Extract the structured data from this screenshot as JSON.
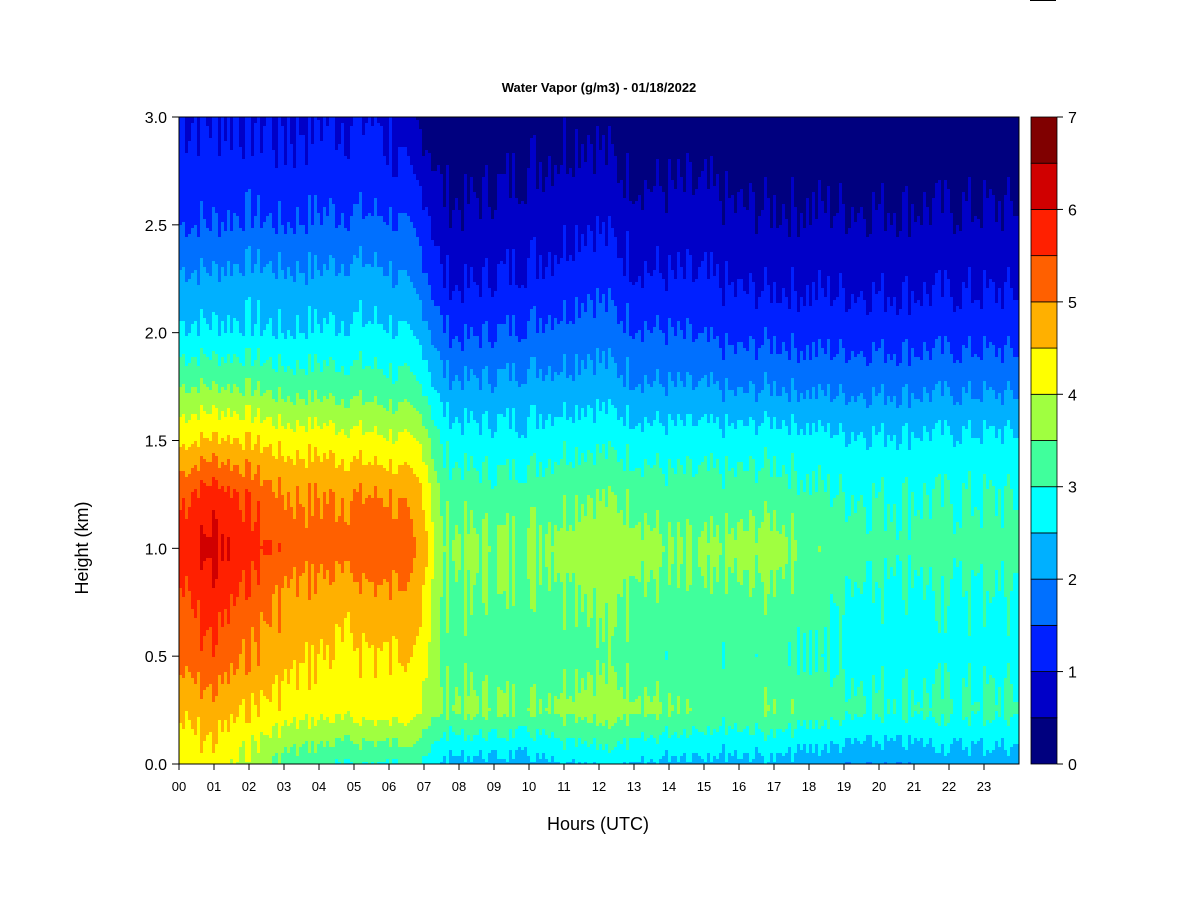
{
  "chart_data": {
    "type": "heatmap",
    "title": "Water Vapor (g/m3) - 01/18/2022",
    "xlabel": "Hours (UTC)",
    "ylabel": "Height (km)",
    "x_ticks": [
      "00",
      "01",
      "02",
      "03",
      "04",
      "05",
      "06",
      "07",
      "08",
      "09",
      "10",
      "11",
      "12",
      "13",
      "14",
      "15",
      "16",
      "17",
      "18",
      "19",
      "20",
      "21",
      "22",
      "23"
    ],
    "y_ticks": [
      "0.0",
      "0.5",
      "1.0",
      "1.5",
      "2.0",
      "2.5",
      "3.0"
    ],
    "xlim": [
      0,
      24
    ],
    "ylim": [
      0,
      3
    ],
    "colorbar": {
      "ticks": [
        "0",
        "1",
        "2",
        "3",
        "4",
        "5",
        "6",
        "7"
      ],
      "range": [
        0,
        7
      ],
      "levels": [
        {
          "from": 0.0,
          "to": 0.5,
          "color": "#00007f"
        },
        {
          "from": 0.5,
          "to": 1.0,
          "color": "#0000c8"
        },
        {
          "from": 1.0,
          "to": 1.5,
          "color": "#0020ff"
        },
        {
          "from": 1.5,
          "to": 2.0,
          "color": "#0070ff"
        },
        {
          "from": 2.0,
          "to": 2.5,
          "color": "#00b0ff"
        },
        {
          "from": 2.5,
          "to": 3.0,
          "color": "#00ffff"
        },
        {
          "from": 3.0,
          "to": 3.5,
          "color": "#40ff9c"
        },
        {
          "from": 3.5,
          "to": 4.0,
          "color": "#a0ff40"
        },
        {
          "from": 4.0,
          "to": 4.5,
          "color": "#ffff00"
        },
        {
          "from": 4.5,
          "to": 5.0,
          "color": "#ffb000"
        },
        {
          "from": 5.0,
          "to": 5.5,
          "color": "#ff6000"
        },
        {
          "from": 5.5,
          "to": 6.0,
          "color": "#ff2000"
        },
        {
          "from": 6.0,
          "to": 6.5,
          "color": "#d00000"
        },
        {
          "from": 6.5,
          "to": 7.0,
          "color": "#800000"
        }
      ]
    },
    "profiles": {
      "heights_km": [
        0.0,
        0.25,
        0.5,
        0.75,
        1.0,
        1.25,
        1.5,
        1.75,
        2.0,
        2.25,
        2.5,
        2.75,
        3.0
      ],
      "times_h": [
        0,
        1,
        2,
        3,
        4,
        5,
        6,
        7,
        7.5,
        8,
        9,
        10,
        11,
        11.7,
        13,
        14,
        15,
        16,
        17,
        18,
        19,
        20,
        21,
        22,
        23,
        24
      ],
      "values": [
        [
          4.2,
          4.6,
          5.2,
          5.4,
          5.7,
          5.4,
          4.4,
          3.5,
          2.6,
          2.1,
          1.5,
          1.2,
          1.0
        ],
        [
          4.3,
          4.8,
          5.4,
          5.8,
          6.2,
          5.8,
          4.6,
          3.5,
          2.6,
          2.1,
          1.5,
          1.2,
          1.0
        ],
        [
          3.8,
          4.5,
          5.0,
          5.3,
          5.8,
          5.4,
          4.5,
          3.5,
          2.6,
          2.2,
          1.6,
          1.2,
          1.0
        ],
        [
          3.3,
          4.3,
          4.7,
          4.9,
          5.3,
          5.0,
          4.3,
          3.3,
          2.5,
          2.1,
          1.5,
          1.1,
          1.0
        ],
        [
          3.1,
          4.2,
          4.5,
          4.8,
          5.2,
          5.0,
          4.3,
          3.3,
          2.6,
          2.1,
          1.6,
          1.2,
          1.0
        ],
        [
          3.0,
          4.2,
          4.4,
          4.7,
          5.3,
          5.0,
          4.2,
          3.3,
          2.6,
          2.2,
          1.6,
          1.2,
          1.0
        ],
        [
          3.0,
          4.3,
          4.5,
          4.9,
          5.4,
          5.0,
          4.1,
          3.2,
          2.6,
          2.1,
          1.6,
          1.1,
          1.0
        ],
        [
          3.0,
          4.0,
          4.3,
          4.6,
          4.8,
          4.6,
          3.9,
          3.0,
          2.3,
          1.7,
          1.3,
          0.8,
          0.3
        ],
        [
          2.4,
          3.5,
          3.3,
          3.4,
          3.6,
          3.3,
          2.9,
          2.2,
          1.6,
          1.0,
          0.7,
          0.4,
          0.2
        ],
        [
          2.3,
          3.6,
          3.3,
          3.4,
          3.6,
          3.3,
          2.7,
          2.1,
          1.4,
          0.9,
          0.6,
          0.3,
          0.1
        ],
        [
          2.3,
          3.6,
          3.2,
          3.4,
          3.6,
          3.2,
          2.7,
          2.1,
          1.5,
          1.0,
          0.7,
          0.4,
          0.2
        ],
        [
          2.3,
          3.5,
          3.2,
          3.4,
          3.6,
          3.3,
          2.7,
          2.2,
          1.6,
          1.1,
          0.8,
          0.5,
          0.3
        ],
        [
          2.6,
          3.7,
          3.3,
          3.5,
          3.7,
          3.4,
          2.9,
          2.2,
          1.7,
          1.2,
          0.9,
          0.6,
          0.4
        ],
        [
          2.6,
          3.8,
          3.4,
          3.6,
          3.9,
          3.5,
          2.9,
          2.3,
          1.8,
          1.4,
          1.0,
          0.7,
          0.4
        ],
        [
          2.6,
          3.7,
          3.3,
          3.5,
          3.8,
          3.4,
          2.8,
          2.1,
          1.6,
          1.1,
          0.8,
          0.4,
          0.2
        ],
        [
          2.3,
          3.5,
          3.1,
          3.3,
          3.5,
          3.2,
          2.7,
          2.0,
          1.5,
          1.0,
          0.7,
          0.4,
          0.2
        ],
        [
          2.3,
          3.3,
          3.1,
          3.3,
          3.5,
          3.2,
          2.7,
          2.0,
          1.4,
          1.0,
          0.7,
          0.4,
          0.2
        ],
        [
          2.3,
          3.3,
          3.1,
          3.3,
          3.6,
          3.2,
          2.7,
          1.9,
          1.3,
          0.9,
          0.6,
          0.3,
          0.2
        ],
        [
          2.4,
          3.5,
          3.2,
          3.4,
          3.8,
          3.3,
          2.8,
          2.0,
          1.4,
          0.9,
          0.6,
          0.3,
          0.2
        ],
        [
          2.2,
          3.3,
          3.0,
          3.2,
          3.4,
          3.1,
          2.7,
          1.9,
          1.3,
          0.9,
          0.6,
          0.3,
          0.1
        ],
        [
          2.1,
          3.2,
          2.9,
          3.0,
          3.3,
          3.0,
          2.6,
          1.9,
          1.3,
          0.9,
          0.6,
          0.3,
          0.1
        ],
        [
          2.1,
          3.1,
          2.8,
          2.9,
          3.2,
          3.0,
          2.6,
          1.9,
          1.3,
          0.9,
          0.6,
          0.3,
          0.1
        ],
        [
          2.1,
          3.1,
          2.8,
          2.9,
          3.2,
          3.0,
          2.6,
          1.9,
          1.3,
          0.9,
          0.6,
          0.3,
          0.1
        ],
        [
          2.2,
          3.1,
          2.8,
          2.9,
          3.2,
          3.0,
          2.6,
          1.9,
          1.3,
          0.9,
          0.6,
          0.3,
          0.1
        ],
        [
          2.2,
          3.1,
          2.8,
          2.9,
          3.2,
          3.0,
          2.6,
          1.9,
          1.3,
          0.9,
          0.6,
          0.3,
          0.1
        ],
        [
          2.2,
          3.1,
          2.8,
          2.9,
          3.2,
          3.0,
          2.6,
          1.9,
          1.3,
          0.9,
          0.6,
          0.3,
          0.1
        ]
      ]
    }
  }
}
